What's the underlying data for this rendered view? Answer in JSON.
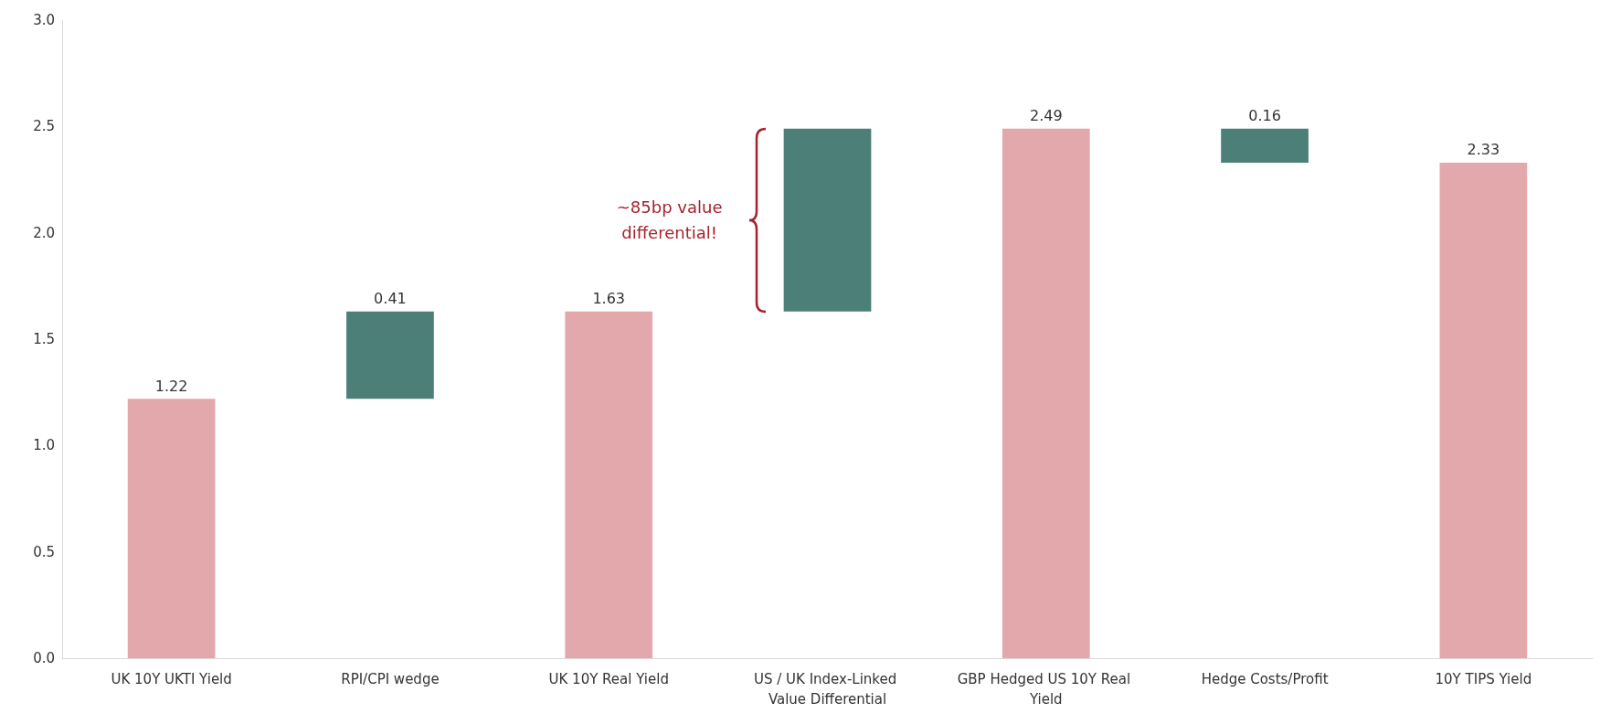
{
  "chart_data": {
    "type": "bar",
    "categories": [
      "UK 10Y UKTI Yield",
      "RPI/CPI wedge",
      "UK 10Y Real Yield",
      "US / UK Index-Linked Value Differential",
      "GBP Hedged US 10Y Real Yield",
      "Hedge Costs/Profit",
      "10Y TIPS Yield"
    ],
    "values": [
      1.22,
      0.41,
      1.63,
      0.86,
      2.49,
      0.16,
      2.33
    ],
    "base": [
      0,
      1.22,
      0,
      1.63,
      0,
      2.33,
      0
    ],
    "colors": [
      "#e3a8ac",
      "#4c7f77",
      "#e3a8ac",
      "#4c7f77",
      "#e3a8ac",
      "#4c7f77",
      "#e3a8ac"
    ],
    "value_labels": [
      "1.22",
      "0.41",
      "1.63",
      null,
      "2.49",
      "0.16",
      "2.33"
    ],
    "ylim": [
      0,
      3
    ],
    "yticks": [
      {
        "value": 0,
        "label": "0.0"
      },
      {
        "value": 0.5,
        "label": "0.5"
      },
      {
        "value": 1,
        "label": "1.0"
      },
      {
        "value": 1.5,
        "label": "1.5"
      },
      {
        "value": 2,
        "label": "2.0"
      },
      {
        "value": 2.5,
        "label": "2.5"
      },
      {
        "value": 3,
        "label": "3.0"
      }
    ],
    "grid": false,
    "annotations": [
      "~85bp value differential!"
    ]
  }
}
